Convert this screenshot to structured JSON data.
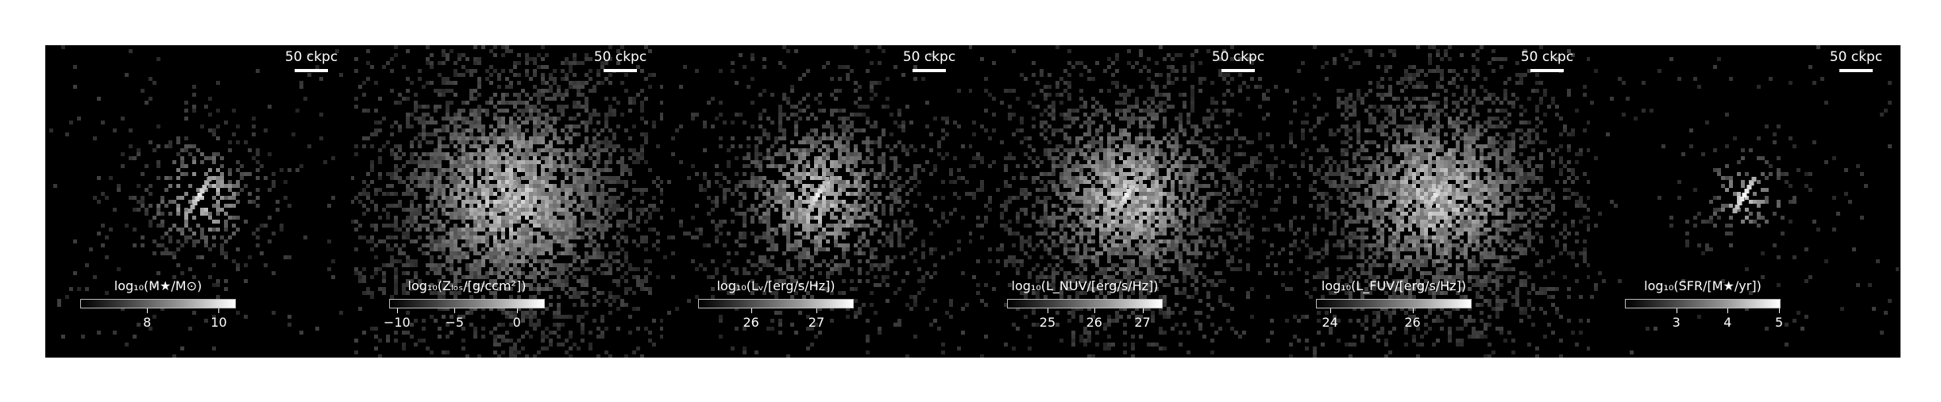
{
  "figure": {
    "panels": [
      {
        "id": "stellar-mass",
        "scalebar": "50 ckpc",
        "cbar_label": "log₁₀(M★/M⊙)",
        "ticks": [
          {
            "label": "8",
            "pos": 0.43
          },
          {
            "label": "10",
            "pos": 0.89
          }
        ],
        "style": {
          "extent": 0.75,
          "density": 0.55,
          "spread": 55,
          "core": 0.9
        }
      },
      {
        "id": "metallicity",
        "scalebar": "50 ckpc",
        "cbar_label": "log₁₀(Zₗₒₛ/[g/ccm²])",
        "ticks": [
          {
            "label": "−10",
            "pos": 0.05
          },
          {
            "label": "−5",
            "pos": 0.42
          },
          {
            "label": "0",
            "pos": 0.82
          }
        ],
        "style": {
          "extent": 1.0,
          "density": 0.9,
          "spread": 110,
          "core": 0.75
        }
      },
      {
        "id": "v-luminosity",
        "scalebar": "50 ckpc",
        "cbar_label": "log₁₀(Lᵥ/[erg/s/Hz])",
        "ticks": [
          {
            "label": "26",
            "pos": 0.34
          },
          {
            "label": "27",
            "pos": 0.76
          }
        ],
        "style": {
          "extent": 0.95,
          "density": 0.75,
          "spread": 80,
          "core": 0.95
        }
      },
      {
        "id": "nuv-luminosity",
        "scalebar": "50 ckpc",
        "cbar_label": "log₁₀(L_NUV/[erg/s/Hz])",
        "ticks": [
          {
            "label": "25",
            "pos": 0.26
          },
          {
            "label": "26",
            "pos": 0.56
          },
          {
            "label": "27",
            "pos": 0.87
          }
        ],
        "style": {
          "extent": 1.0,
          "density": 0.85,
          "spread": 95,
          "core": 0.95
        }
      },
      {
        "id": "fuv-luminosity",
        "scalebar": "50 ckpc",
        "cbar_label": "log₁₀(L_FUV/[erg/s/Hz])",
        "ticks": [
          {
            "label": "24",
            "pos": 0.09
          },
          {
            "label": "26",
            "pos": 0.62
          }
        ],
        "style": {
          "extent": 1.0,
          "density": 0.9,
          "spread": 100,
          "core": 0.9
        }
      },
      {
        "id": "star-formation-rate",
        "scalebar": "50 ckpc",
        "cbar_label": "log₁₀(SFR/[M★/yr])",
        "ticks": [
          {
            "label": "3",
            "pos": 0.33
          },
          {
            "label": "4",
            "pos": 0.66
          },
          {
            "label": "5",
            "pos": 0.99
          }
        ],
        "style": {
          "extent": 0.55,
          "density": 0.45,
          "spread": 40,
          "core": 1.0
        }
      }
    ]
  }
}
